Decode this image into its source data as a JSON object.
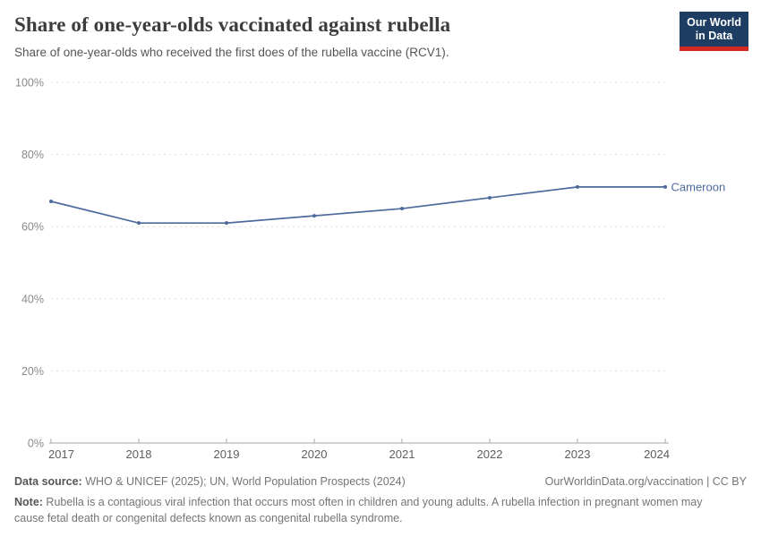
{
  "header": {
    "title": "Share of one-year-olds vaccinated against rubella",
    "subtitle": "Share of one-year-olds who received the first does of the rubella vaccine (RCV1).",
    "logo": {
      "line1": "Our World",
      "line2": "in Data",
      "bg_color": "#1d3d63",
      "accent_color": "#d1281f"
    }
  },
  "chart_data": {
    "type": "line",
    "title": "Share of one-year-olds vaccinated against rubella",
    "x": [
      2017,
      2018,
      2019,
      2020,
      2021,
      2022,
      2023,
      2024
    ],
    "series": [
      {
        "name": "Cameroon",
        "values": [
          67,
          61,
          61,
          63,
          65,
          68,
          71,
          71
        ],
        "color": "#4C6A9C"
      }
    ],
    "xlabel": "",
    "ylabel": "",
    "ylim": [
      0,
      100
    ],
    "yticks": [
      0,
      20,
      40,
      60,
      80,
      100
    ],
    "ytick_suffix": "%",
    "grid": "horizontal-dashed",
    "legend_position": "end-of-line-label",
    "marker": "dot"
  },
  "footer": {
    "source_label": "Data source:",
    "source_text": " WHO & UNICEF (2025); UN, World Population Prospects (2024)",
    "rights": "OurWorldinData.org/vaccination | CC BY",
    "note_label": "Note:",
    "note_text": " Rubella is a contagious viral infection that occurs most often in children and young adults. A rubella infection in pregnant women may cause fetal death or congenital defects known as congenital rubella syndrome."
  }
}
